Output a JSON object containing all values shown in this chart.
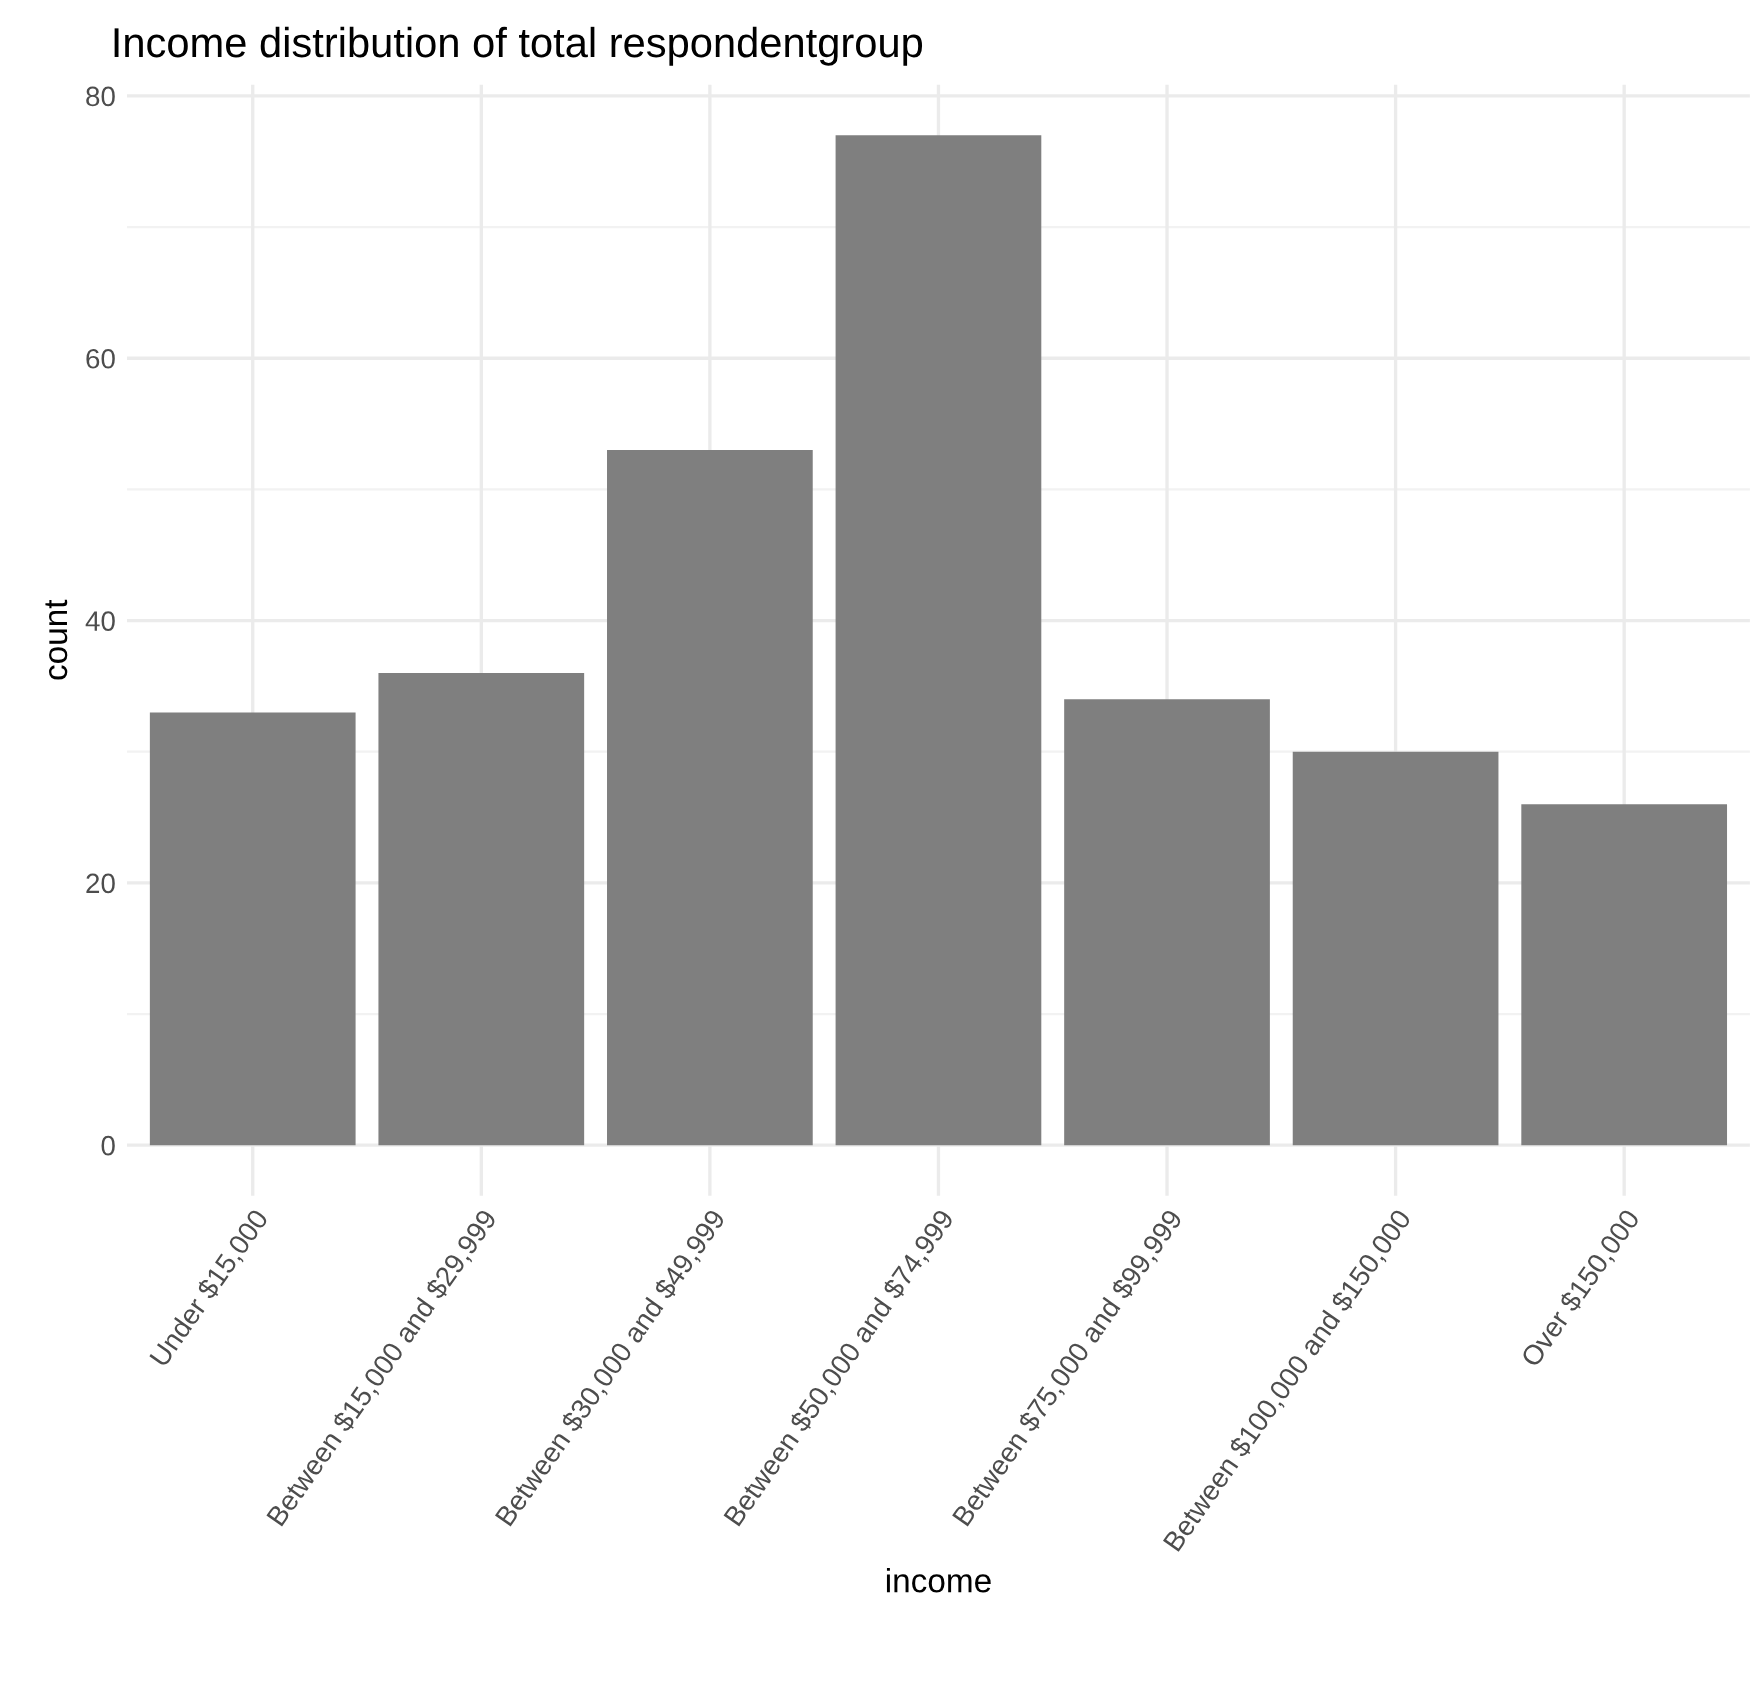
{
  "chart_data": {
    "type": "bar",
    "title": "Income distribution of total respondentgroup",
    "xlabel": "income",
    "ylabel": "count",
    "categories": [
      "Under $15,000",
      "Between $15,000 and $29,999",
      "Between $30,000 and $49,999",
      "Between $50,000 and $74,999",
      "Between $75,000 and $99,999",
      "Between $100,000 and $150,000",
      "Over $150,000"
    ],
    "values": [
      33,
      36,
      53,
      77,
      34,
      30,
      26
    ],
    "color": "#7f7f7f",
    "ylim": [
      -3.85,
      80.85
    ],
    "yticks": [
      0,
      20,
      40,
      60,
      80
    ],
    "grid": true,
    "legend": false
  }
}
